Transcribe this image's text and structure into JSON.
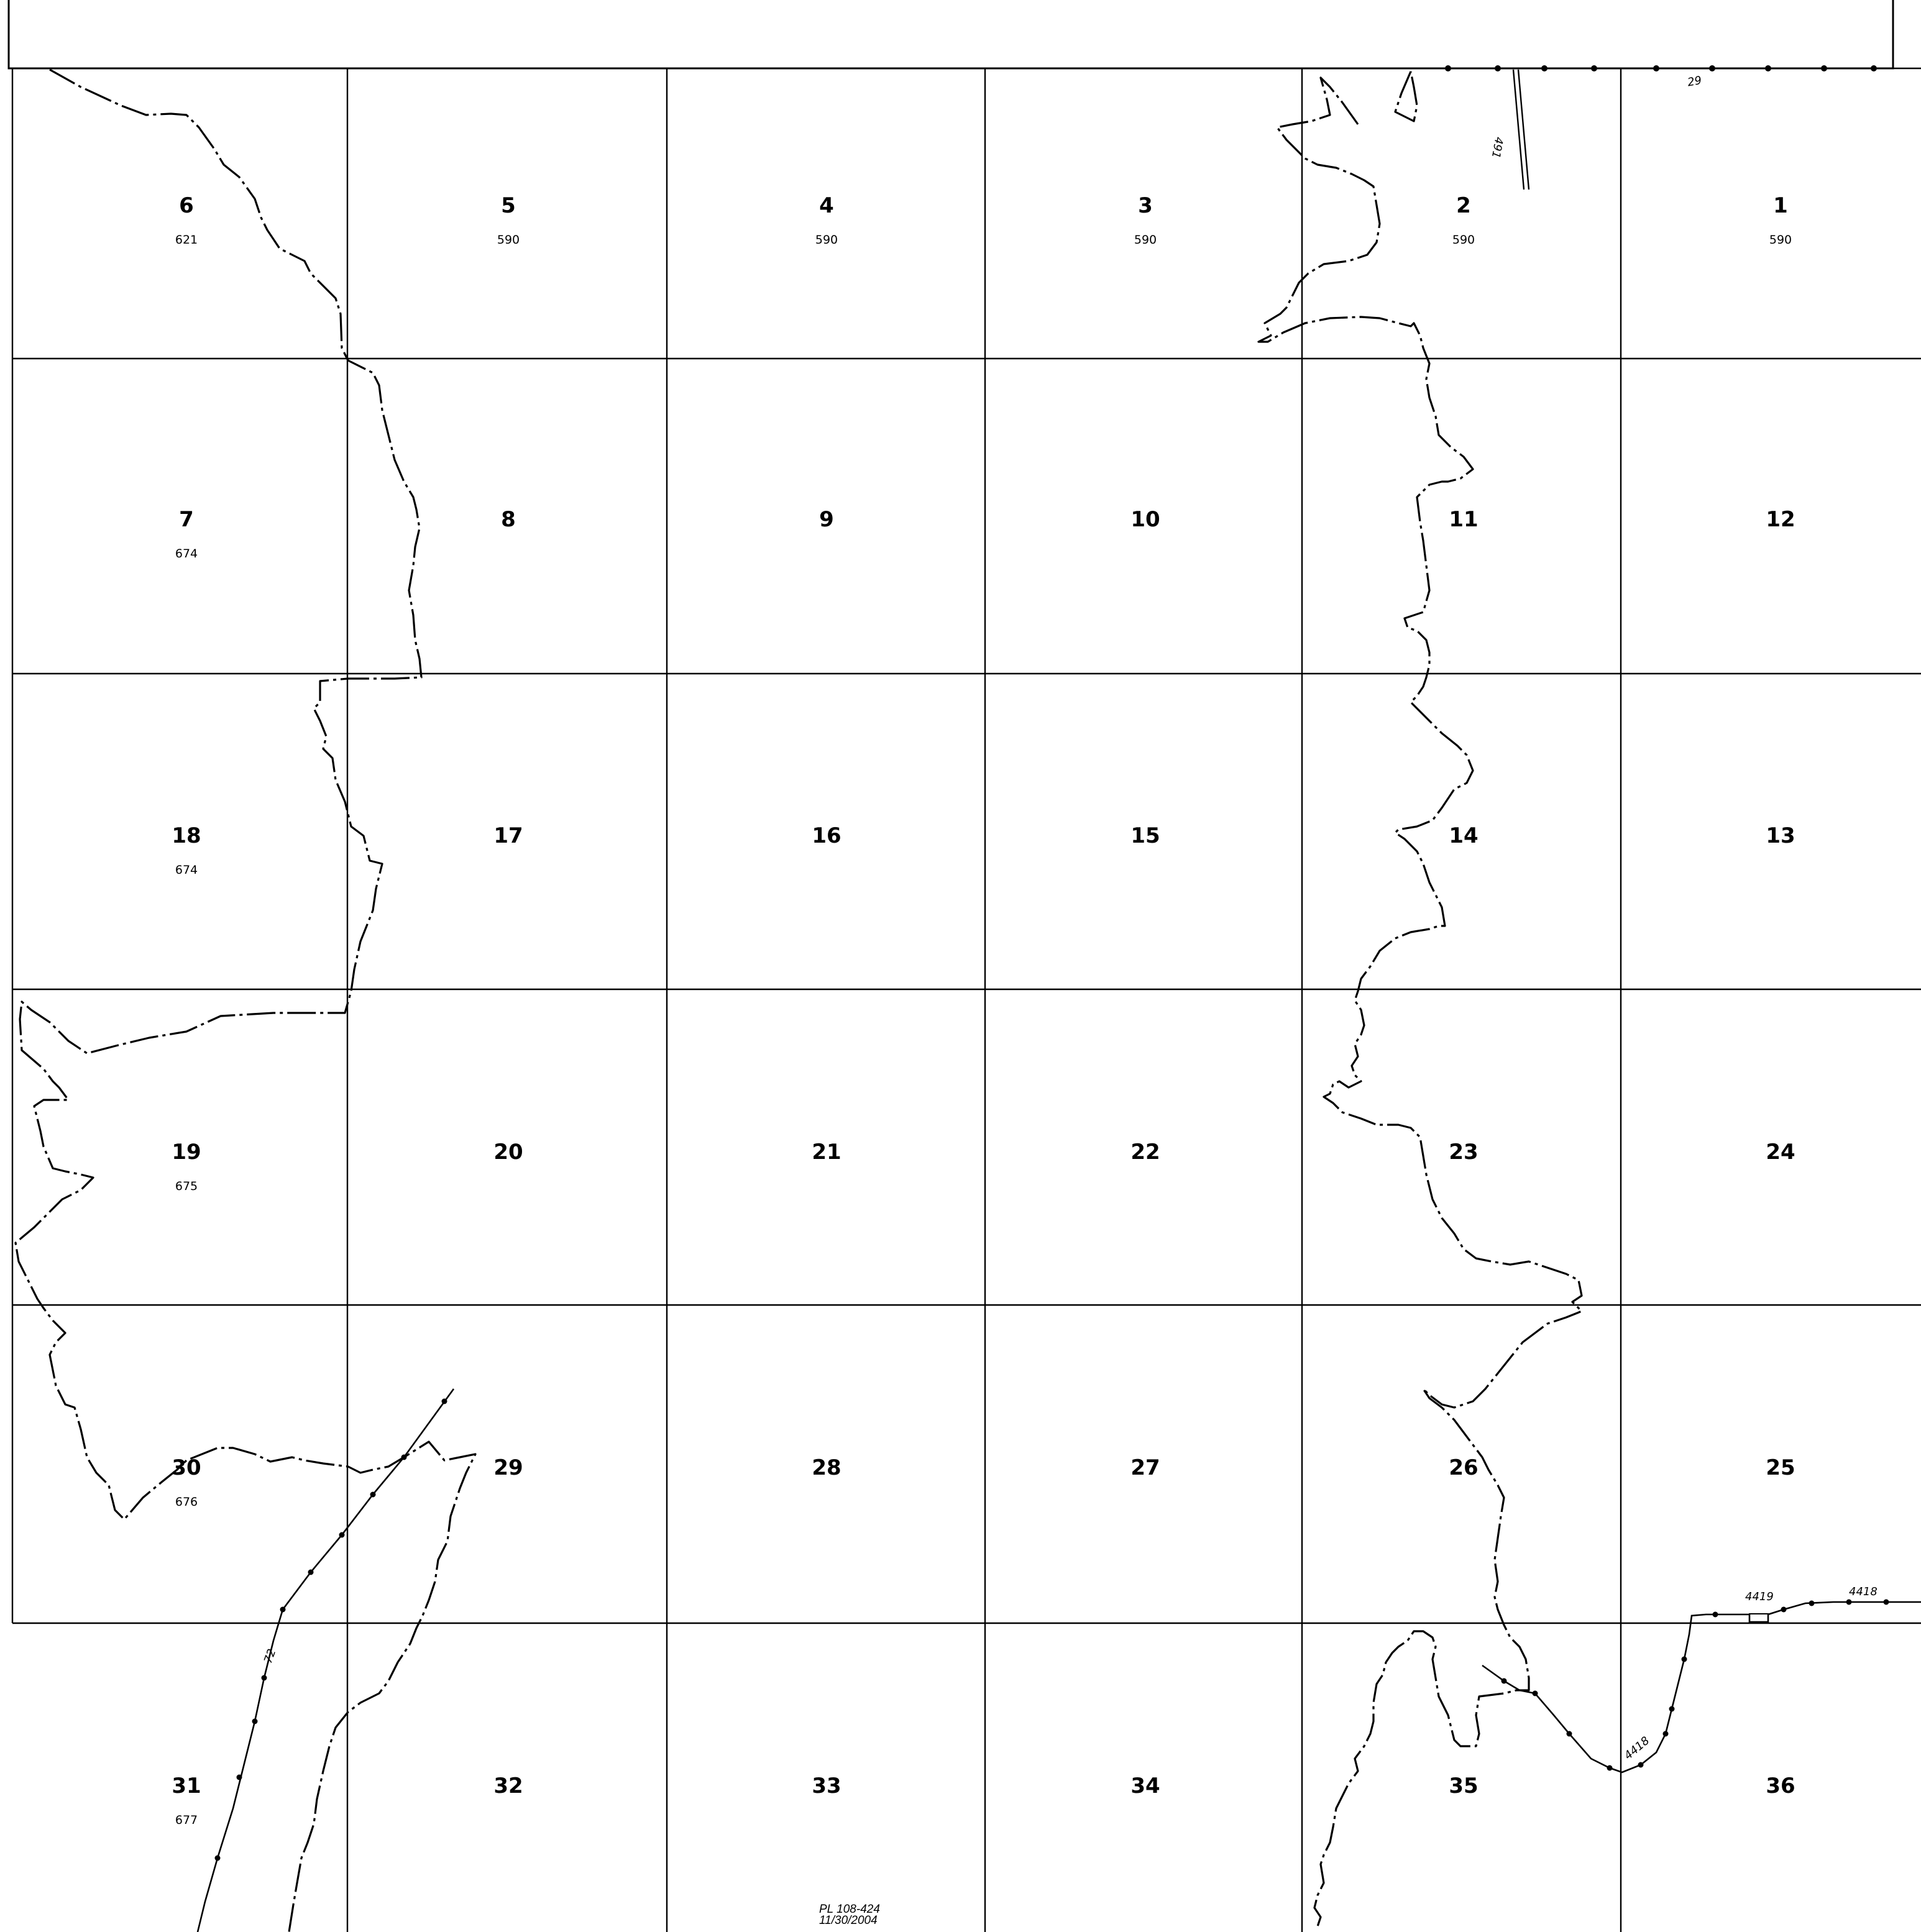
{
  "sections": [
    {
      "number": "6",
      "acreage": "621"
    },
    {
      "number": "5",
      "acreage": "590"
    },
    {
      "number": "4",
      "acreage": "590"
    },
    {
      "number": "3",
      "acreage": "590"
    },
    {
      "number": "2",
      "acreage": "590"
    },
    {
      "number": "1",
      "acreage": "590"
    },
    {
      "number": "7",
      "acreage": "674"
    },
    {
      "number": "8",
      "acreage": ""
    },
    {
      "number": "9",
      "acreage": ""
    },
    {
      "number": "10",
      "acreage": ""
    },
    {
      "number": "11",
      "acreage": ""
    },
    {
      "number": "12",
      "acreage": ""
    },
    {
      "number": "18",
      "acreage": "674"
    },
    {
      "number": "17",
      "acreage": ""
    },
    {
      "number": "16",
      "acreage": ""
    },
    {
      "number": "15",
      "acreage": ""
    },
    {
      "number": "14",
      "acreage": ""
    },
    {
      "number": "13",
      "acreage": ""
    },
    {
      "number": "19",
      "acreage": "675"
    },
    {
      "number": "20",
      "acreage": ""
    },
    {
      "number": "21",
      "acreage": ""
    },
    {
      "number": "22",
      "acreage": ""
    },
    {
      "number": "23",
      "acreage": ""
    },
    {
      "number": "24",
      "acreage": ""
    },
    {
      "number": "30",
      "acreage": "676"
    },
    {
      "number": "29",
      "acreage": ""
    },
    {
      "number": "28",
      "acreage": ""
    },
    {
      "number": "27",
      "acreage": ""
    },
    {
      "number": "26",
      "acreage": ""
    },
    {
      "number": "25",
      "acreage": ""
    },
    {
      "number": "31",
      "acreage": "677"
    },
    {
      "number": "32",
      "acreage": ""
    },
    {
      "number": "33",
      "acreage": ""
    },
    {
      "number": "34",
      "acreage": ""
    },
    {
      "number": "35",
      "acreage": ""
    },
    {
      "number": "36",
      "acreage": ""
    }
  ],
  "route_labels": {
    "route_29": "29",
    "route_491": "491",
    "route_72": "72",
    "route_4419": "4419",
    "route_4418_east": "4418",
    "route_4418_south": "4418"
  },
  "footnote": {
    "law": "PL 108-424",
    "date": "11/30/2004"
  }
}
